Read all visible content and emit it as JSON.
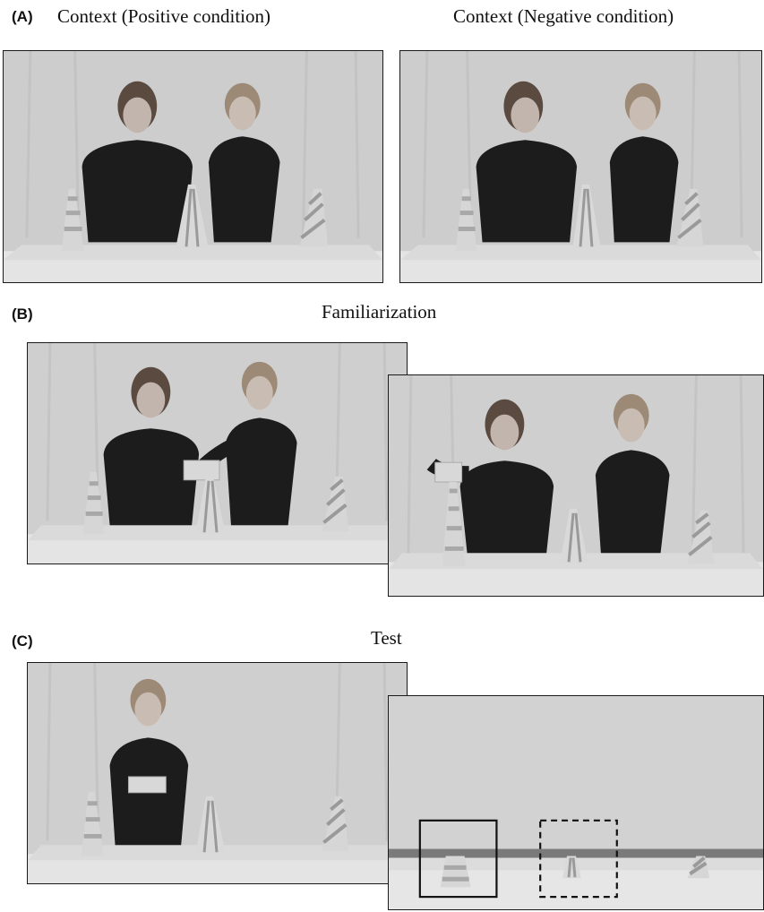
{
  "panel_a": {
    "label": "(A)",
    "left_caption": "Context (Positive condition)",
    "right_caption": "Context (Negative condition)"
  },
  "panel_b": {
    "label": "(B)",
    "caption": "Familiarization"
  },
  "panel_c": {
    "label": "(C)",
    "caption": "Test"
  },
  "colors": {
    "frame": "#1a1a1a",
    "curtain": "#cfcfcf",
    "table": "#e6e6e6",
    "shirt": "#1c1c1c",
    "cone_stripe": "#9a9a9a"
  }
}
